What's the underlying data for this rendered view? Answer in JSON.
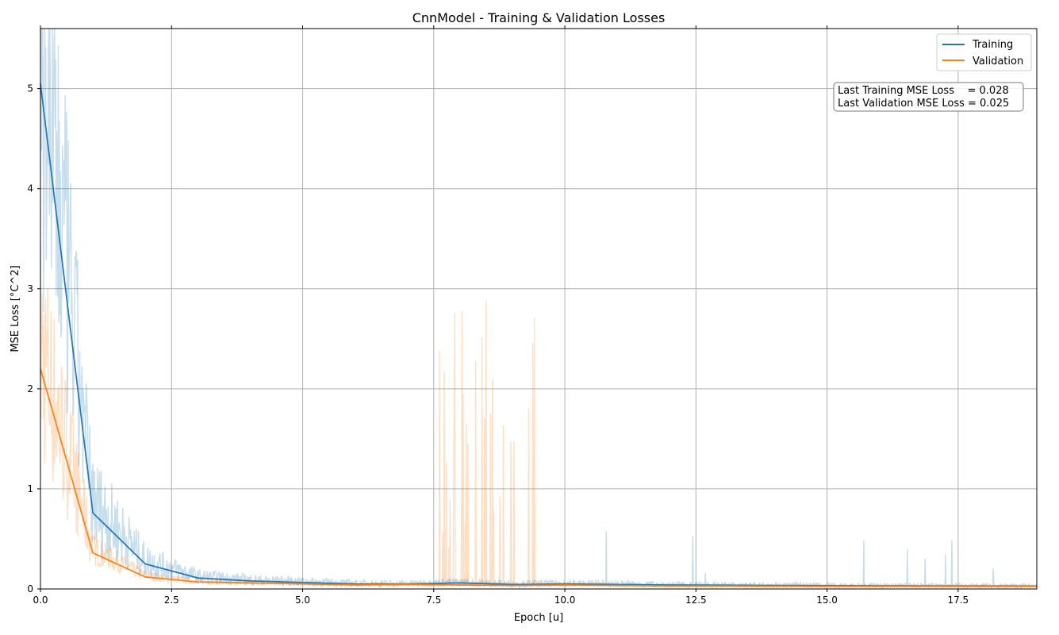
{
  "chart_data": {
    "type": "line",
    "title": "CnnModel - Training & Validation Losses",
    "xlabel": "Epoch [u]",
    "ylabel": "MSE Loss [°C^2]",
    "xlim": [
      0,
      19
    ],
    "ylim": [
      0,
      5.6
    ],
    "x_ticks": [
      0.0,
      2.5,
      5.0,
      7.5,
      10.0,
      12.5,
      15.0,
      17.5
    ],
    "x_tick_labels": [
      "0.0",
      "2.5",
      "5.0",
      "7.5",
      "10.0",
      "12.5",
      "15.0",
      "17.5"
    ],
    "y_ticks": [
      0,
      1,
      2,
      3,
      4,
      5
    ],
    "y_tick_labels": [
      "0",
      "1",
      "2",
      "3",
      "4",
      "5"
    ],
    "grid": true,
    "legend_position": "top-right",
    "series": [
      {
        "name": "Training",
        "color": "#1f77b4",
        "x": [
          0,
          1,
          2,
          3,
          4,
          5,
          6,
          7,
          8,
          9,
          10,
          11,
          12,
          13,
          14,
          15,
          16,
          17,
          18,
          19
        ],
        "values": [
          5.05,
          0.76,
          0.25,
          0.11,
          0.08,
          0.065,
          0.05,
          0.048,
          0.06,
          0.045,
          0.05,
          0.045,
          0.04,
          0.038,
          0.035,
          0.033,
          0.031,
          0.03,
          0.029,
          0.028
        ]
      },
      {
        "name": "Validation",
        "color": "#ff7f0e",
        "x": [
          0,
          1,
          2,
          3,
          4,
          5,
          6,
          7,
          8,
          9,
          10,
          11,
          12,
          13,
          14,
          15,
          16,
          17,
          18,
          19
        ],
        "values": [
          2.2,
          0.36,
          0.12,
          0.07,
          0.06,
          0.05,
          0.04,
          0.045,
          0.04,
          0.035,
          0.04,
          0.035,
          0.03,
          0.03,
          0.028,
          0.027,
          0.026,
          0.026,
          0.025,
          0.025
        ]
      }
    ],
    "annotation": {
      "lines": [
        "Last Training MSE Loss    = 0.028",
        "Last Validation MSE Loss = 0.025"
      ]
    },
    "raw_batch_colors": {
      "training": "#1f77b4",
      "validation": "#ff7f0e",
      "opacity": 0.25
    }
  }
}
